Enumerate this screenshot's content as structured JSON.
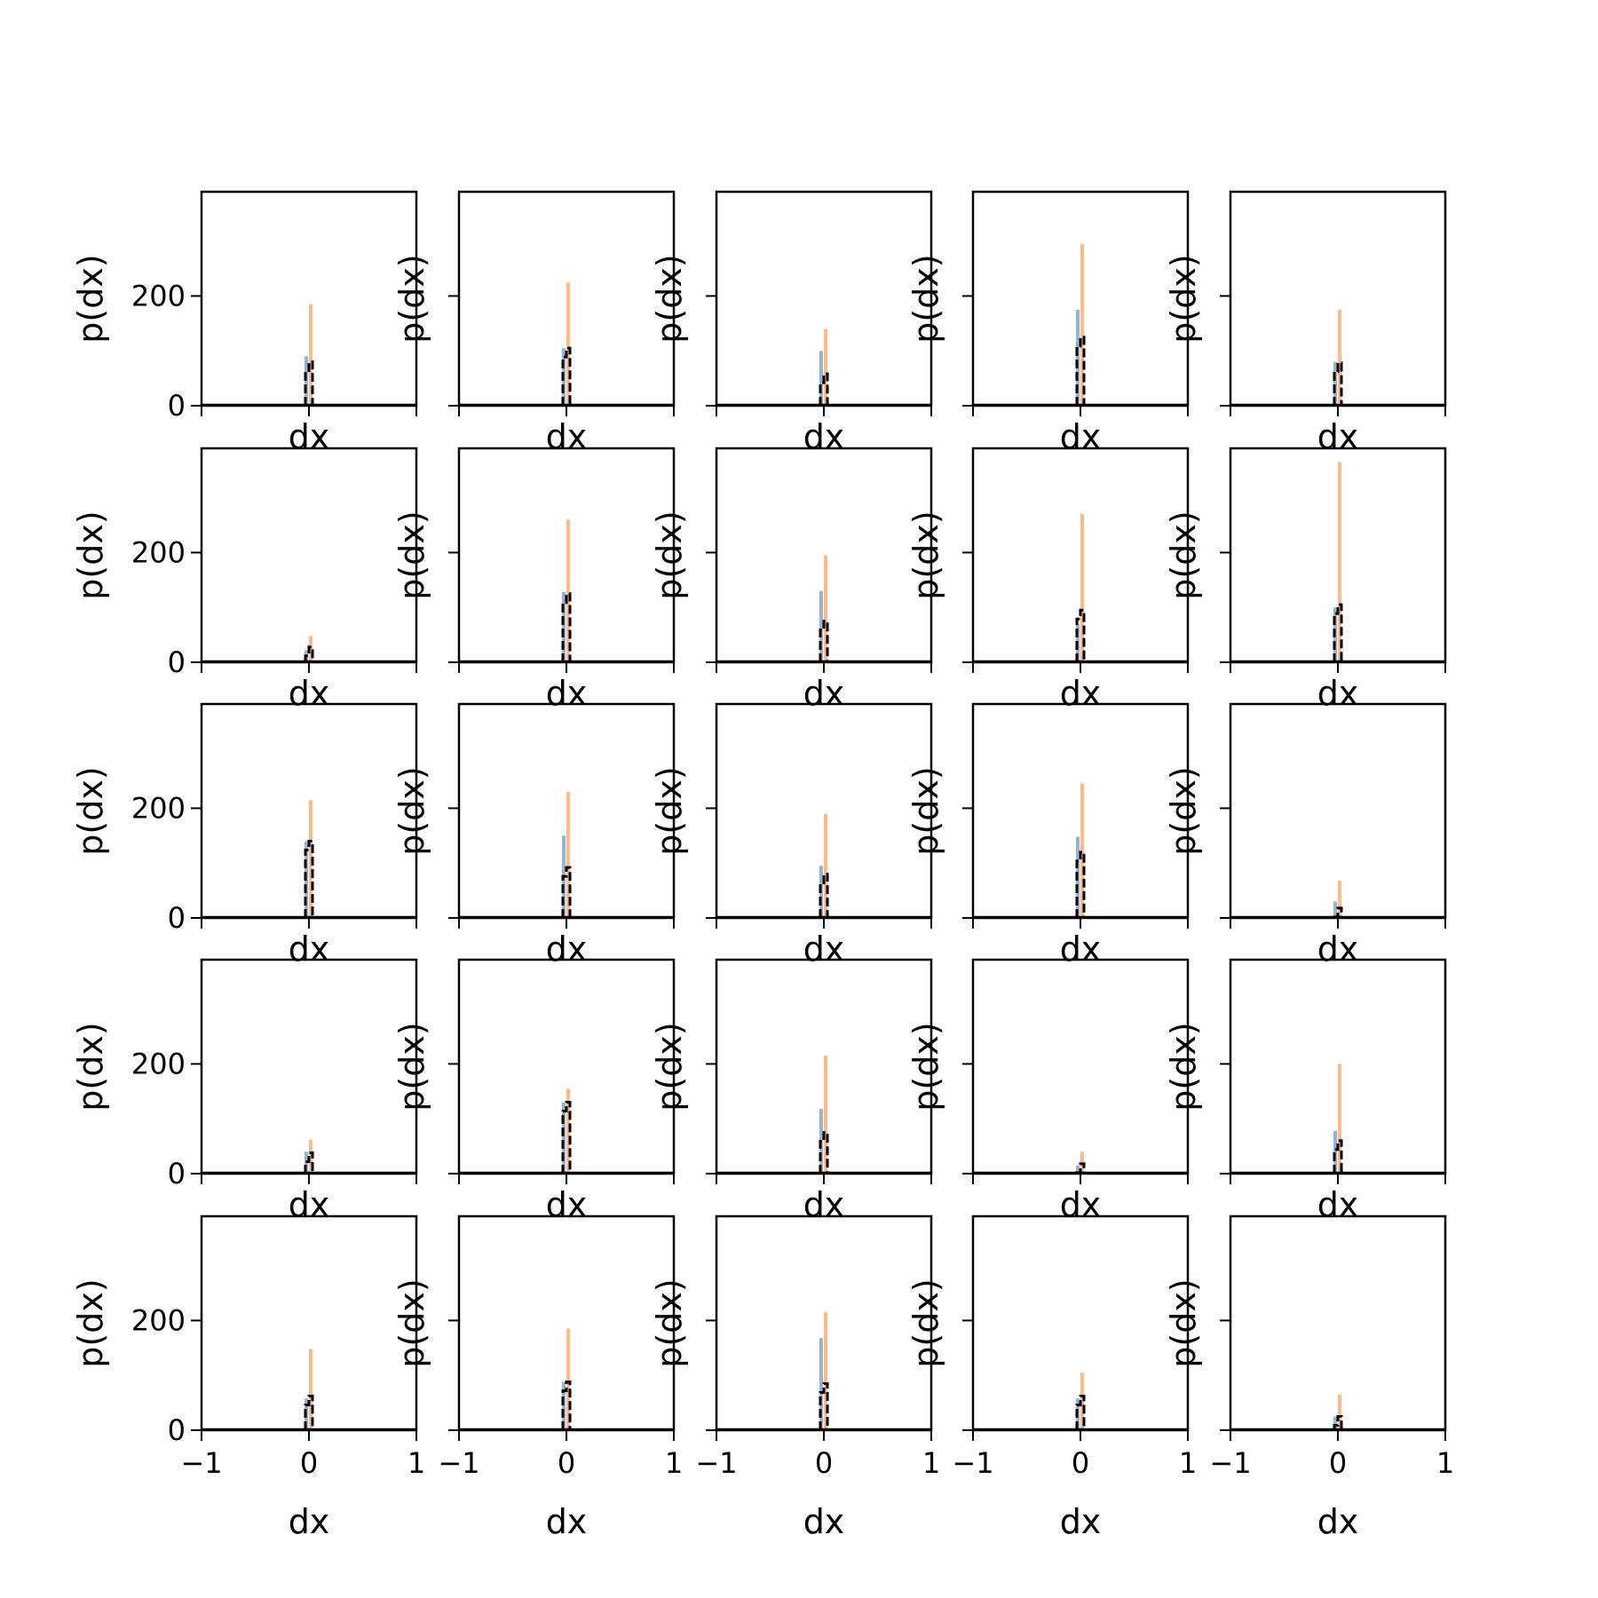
{
  "chart_data": {
    "type": "bar",
    "layout": {
      "rows": 5,
      "cols": 5
    },
    "xlabel": "dx",
    "ylabel": "p(dx)",
    "xlim": [
      -1,
      1
    ],
    "ylim": [
      0,
      390
    ],
    "xticks": [
      -1,
      0,
      1
    ],
    "xtick_labels": [
      "−1",
      "0",
      "1"
    ],
    "yticks": [
      0,
      200
    ],
    "ytick_labels": [
      "0",
      "200"
    ],
    "grid": false,
    "legend": "none",
    "colors": {
      "series_a": "#ffb27a",
      "series_b": "#7fa8cc",
      "series_c": "#000000"
    },
    "panels": [
      {
        "a": 185,
        "b": 90,
        "c": 80
      },
      {
        "a": 225,
        "b": 105,
        "c": 105
      },
      {
        "a": 140,
        "b": 100,
        "c": 58
      },
      {
        "a": 295,
        "b": 175,
        "c": 125
      },
      {
        "a": 175,
        "b": 80,
        "c": 78
      },
      {
        "a": 48,
        "b": 22,
        "c": 28
      },
      {
        "a": 260,
        "b": 128,
        "c": 125
      },
      {
        "a": 195,
        "b": 130,
        "c": 75
      },
      {
        "a": 270,
        "b": 70,
        "c": 95
      },
      {
        "a": 365,
        "b": 100,
        "c": 105
      },
      {
        "a": 215,
        "b": 140,
        "c": 140
      },
      {
        "a": 230,
        "b": 150,
        "c": 92
      },
      {
        "a": 190,
        "b": 95,
        "c": 80
      },
      {
        "a": 245,
        "b": 148,
        "c": 120
      },
      {
        "a": 68,
        "b": 30,
        "c": 18
      },
      {
        "a": 62,
        "b": 40,
        "c": 38
      },
      {
        "a": 155,
        "b": 130,
        "c": 130
      },
      {
        "a": 215,
        "b": 118,
        "c": 75
      },
      {
        "a": 40,
        "b": 15,
        "c": 18
      },
      {
        "a": 200,
        "b": 78,
        "c": 60
      },
      {
        "a": 148,
        "b": 58,
        "c": 62
      },
      {
        "a": 185,
        "b": 88,
        "c": 88
      },
      {
        "a": 215,
        "b": 168,
        "c": 85
      },
      {
        "a": 105,
        "b": 58,
        "c": 62
      },
      {
        "a": 65,
        "b": 25,
        "c": 25
      }
    ]
  }
}
